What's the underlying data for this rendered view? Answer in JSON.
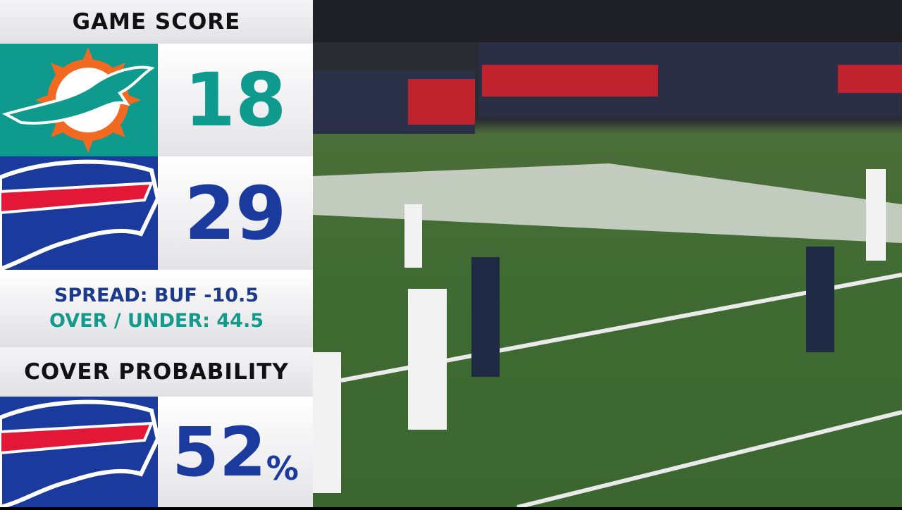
{
  "title": "GAME SCORE",
  "teams": [
    {
      "abbr": "MIA",
      "logo": "dolphins-logo",
      "score": "18",
      "color": "#0e9a8c",
      "text_color": "#0e9a8c"
    },
    {
      "abbr": "BUF",
      "logo": "bills-logo",
      "score": "29",
      "color": "#1b3a9e",
      "text_color": "#1b3a9e"
    }
  ],
  "odds": {
    "spread": "SPREAD: BUF -10.5",
    "over_under": "OVER / UNDER: 44.5"
  },
  "cover": {
    "title": "COVER PROBABILITY",
    "team_logo": "bills-logo",
    "value": "52",
    "unit": "%"
  }
}
